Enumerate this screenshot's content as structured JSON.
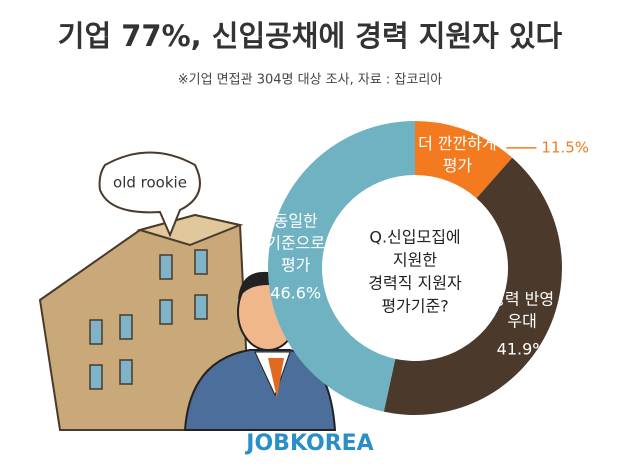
{
  "chart_data": {
    "type": "pie",
    "title": "기업 77%, 신입공채에 경력 지원자 있다",
    "subtitle": "※기업 면접관 304명 대상 조사, 자료 : 잡코리아",
    "center_text": [
      "Q.신입모집에",
      "지원한",
      "경력직 지원자",
      "평가기준?"
    ],
    "categories": [
      [
        "더 깐깐하게",
        "평가"
      ],
      [
        "경력 반영",
        "우대"
      ],
      [
        "동일한",
        "기준으로",
        "평가"
      ]
    ],
    "values": [
      11.5,
      41.9,
      46.6
    ],
    "value_labels": [
      "11.5%",
      "41.9%",
      "46.6%"
    ],
    "colors": [
      "#f47a20",
      "#4b3a2b",
      "#6fb3c3"
    ],
    "bubble_text": "old rookie",
    "brand": "JOBKOREA"
  }
}
